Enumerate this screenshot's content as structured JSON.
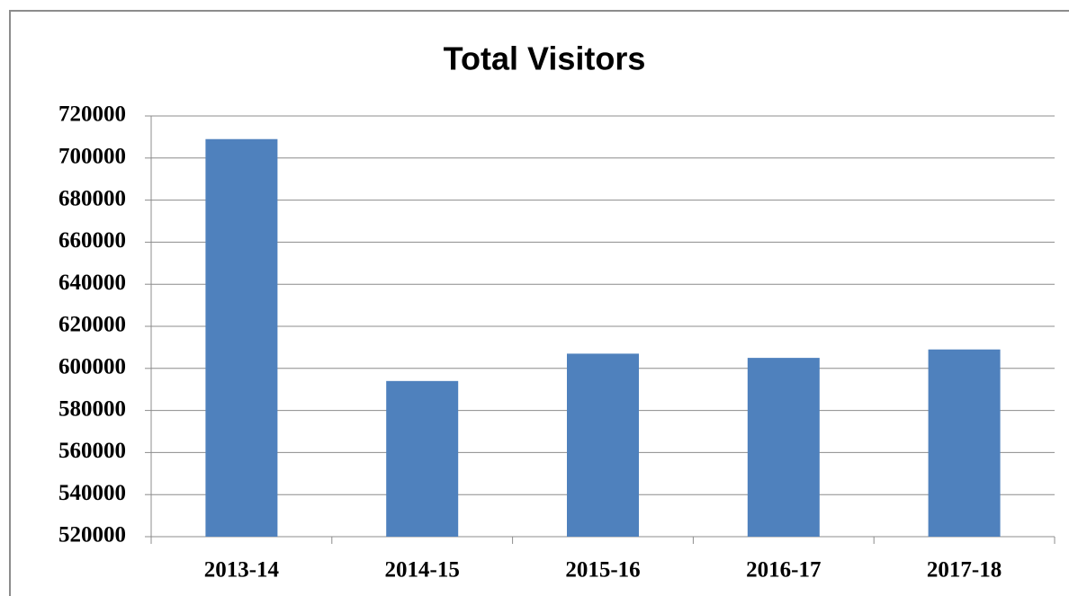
{
  "chart_data": {
    "type": "bar",
    "title": "Total Visitors",
    "categories": [
      "2013-14",
      "2014-15",
      "2015-16",
      "2016-17",
      "2017-18"
    ],
    "values": [
      709000,
      594000,
      607000,
      605000,
      609000
    ],
    "color": "#4f81bd",
    "ylim": [
      520000,
      720000
    ],
    "yticks": [
      520000,
      540000,
      560000,
      580000,
      600000,
      620000,
      640000,
      660000,
      680000,
      700000,
      720000
    ],
    "grid": true
  }
}
